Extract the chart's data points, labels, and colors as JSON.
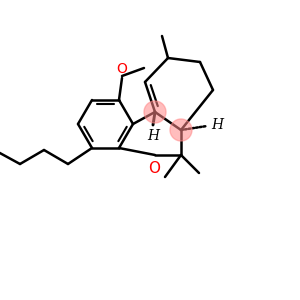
{
  "background": "#ffffff",
  "line_color": "#000000",
  "red_circle_color": "#ff8888",
  "red_circle_alpha": 0.55,
  "O_color": "#ff0000",
  "H_color": "#000000",
  "line_width": 1.8,
  "figsize": [
    3.0,
    3.0
  ],
  "dpi": 100,
  "methoxy_O_label": "O",
  "pyran_O_label": "O",
  "H_label": "H"
}
